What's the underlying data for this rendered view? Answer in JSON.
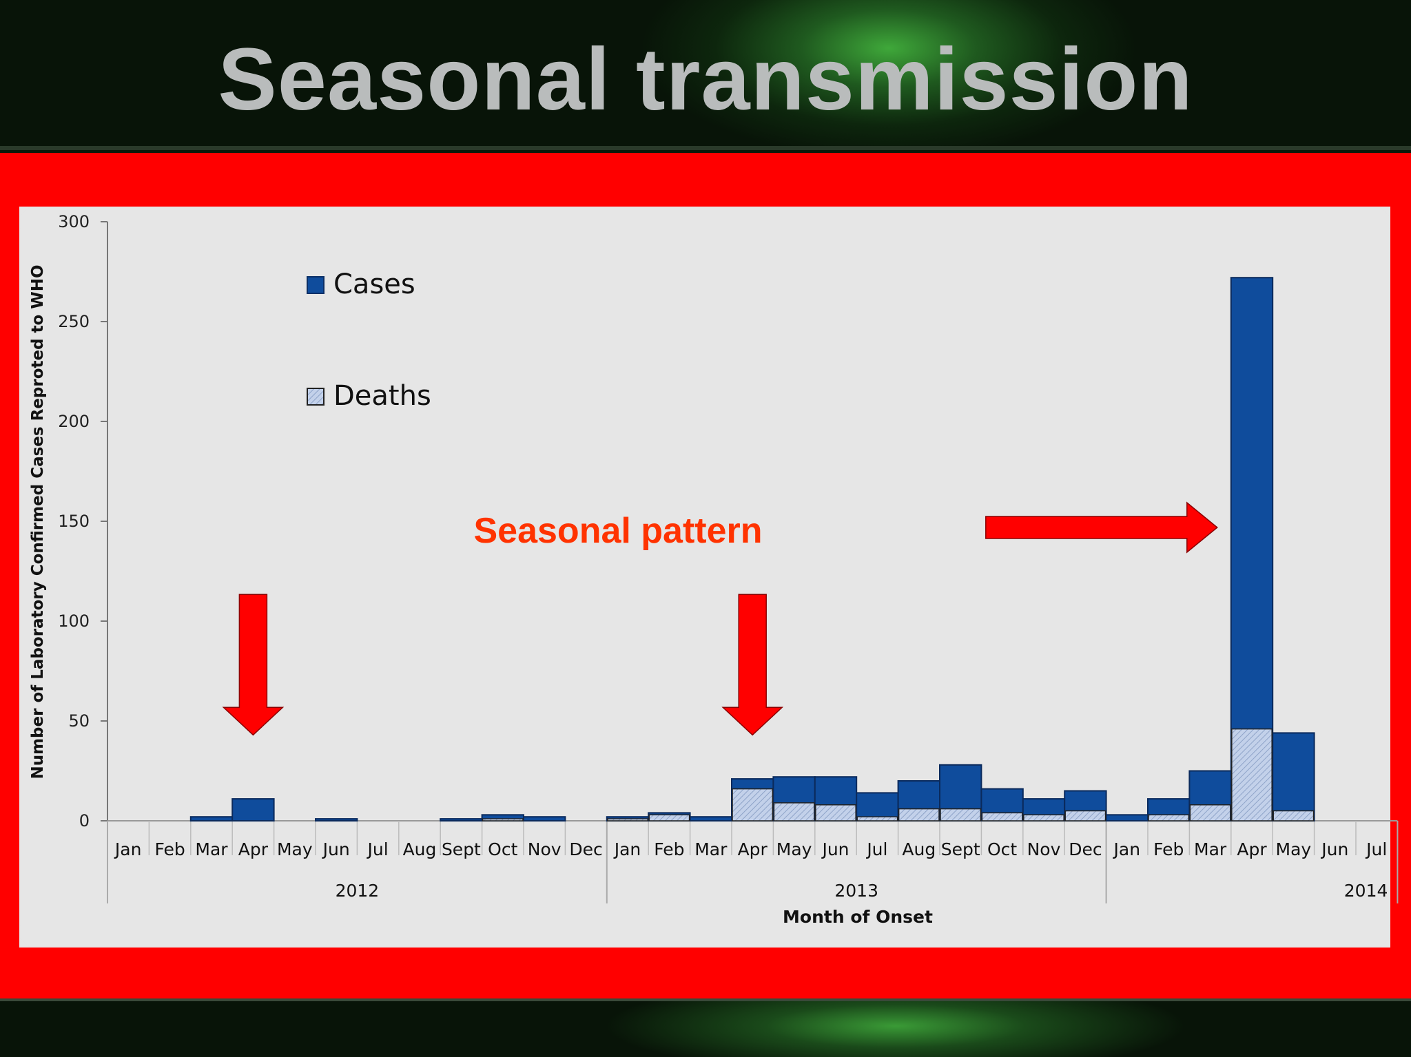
{
  "slide_title": "Seasonal transmission",
  "annotation": "Seasonal pattern",
  "colors": {
    "cases": "#0f4c9c",
    "deaths": "#b8c8e4",
    "arrow": "#ff0000",
    "annotation": "#ff3300",
    "frame": "#ff0000"
  },
  "chart_data": {
    "type": "bar",
    "ylabel": "Number of Laboratory Confirmed Cases Reproted to WHO",
    "xlabel": "Month of Onset",
    "ylim": [
      0,
      300
    ],
    "yticks": [
      0,
      50,
      100,
      150,
      200,
      250,
      300
    ],
    "legend_position": "top-left",
    "categories": [
      "Jan",
      "Feb",
      "Mar",
      "Apr",
      "May",
      "Jun",
      "Jul",
      "Aug",
      "Sept",
      "Oct",
      "Nov",
      "Dec",
      "Jan",
      "Feb",
      "Mar",
      "Apr",
      "May",
      "Jun",
      "Jul",
      "Aug",
      "Sept",
      "Oct",
      "Nov",
      "Dec",
      "Jan",
      "Feb",
      "Mar",
      "Apr",
      "May",
      "Jun",
      "Jul"
    ],
    "years": [
      {
        "label": "2012",
        "start": 0,
        "end": 11
      },
      {
        "label": "2013",
        "start": 12,
        "end": 23
      },
      {
        "label": "2014",
        "start": 24,
        "end": 30
      }
    ],
    "series": [
      {
        "name": "Cases",
        "values": [
          0,
          0,
          2,
          11,
          0,
          1,
          0,
          0,
          1,
          3,
          2,
          0,
          2,
          4,
          2,
          21,
          22,
          22,
          14,
          20,
          28,
          16,
          11,
          15,
          3,
          11,
          25,
          272,
          44,
          0,
          0
        ]
      },
      {
        "name": "Deaths",
        "values": [
          0,
          0,
          0,
          0,
          0,
          0,
          0,
          0,
          0,
          1,
          0,
          0,
          1,
          3,
          0,
          16,
          9,
          8,
          2,
          6,
          6,
          4,
          3,
          5,
          0,
          3,
          8,
          46,
          5,
          0,
          0
        ]
      }
    ],
    "highlight_arrows": [
      {
        "direction": "down",
        "category_index": 3
      },
      {
        "direction": "down",
        "category_index": 15
      },
      {
        "direction": "right",
        "category_index": 27
      }
    ]
  }
}
